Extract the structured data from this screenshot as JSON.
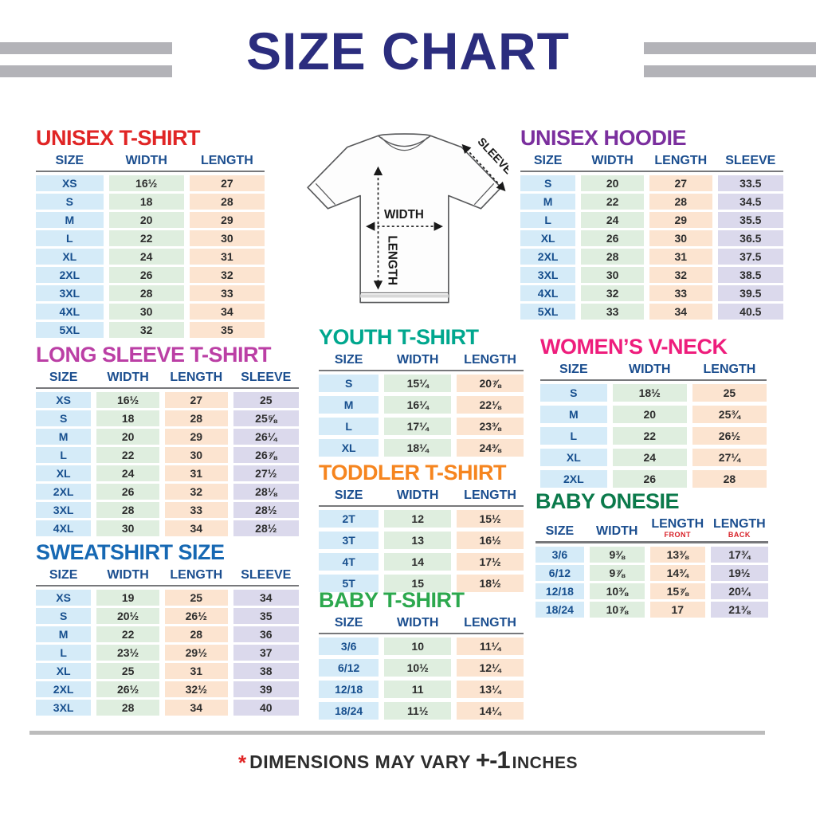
{
  "header": {
    "title": "SIZE CHART"
  },
  "colors": {
    "title": "#2b2d7e",
    "footnote_star": "#e02525",
    "bars": "#b3b3b8"
  },
  "diagram": {
    "width_label": "WIDTH",
    "length_label": "LENGTH",
    "sleeve_label": "SLEEVE"
  },
  "footnote": {
    "star": "*",
    "text": "DIMENSIONS MAY VARY",
    "tolerance": "+-1",
    "units": "INCHES"
  },
  "tables": [
    {
      "id": "unisex-tshirt",
      "title": "UNISEX T-SHIRT",
      "color": "#e02525",
      "columns": [
        {
          "label": "SIZE"
        },
        {
          "label": "WIDTH"
        },
        {
          "label": "LENGTH"
        }
      ],
      "rows": [
        [
          "XS",
          "16½",
          "27"
        ],
        [
          "S",
          "18",
          "28"
        ],
        [
          "M",
          "20",
          "29"
        ],
        [
          "L",
          "22",
          "30"
        ],
        [
          "XL",
          "24",
          "31"
        ],
        [
          "2XL",
          "26",
          "32"
        ],
        [
          "3XL",
          "28",
          "33"
        ],
        [
          "4XL",
          "30",
          "34"
        ],
        [
          "5XL",
          "32",
          "35"
        ]
      ]
    },
    {
      "id": "unisex-hoodie",
      "title": "UNISEX HOODIE",
      "color": "#7b2f9e",
      "columns": [
        {
          "label": "SIZE"
        },
        {
          "label": "WIDTH"
        },
        {
          "label": "LENGTH"
        },
        {
          "label": "SLEEVE"
        }
      ],
      "rows": [
        [
          "S",
          "20",
          "27",
          "33.5"
        ],
        [
          "M",
          "22",
          "28",
          "34.5"
        ],
        [
          "L",
          "24",
          "29",
          "35.5"
        ],
        [
          "XL",
          "26",
          "30",
          "36.5"
        ],
        [
          "2XL",
          "28",
          "31",
          "37.5"
        ],
        [
          "3XL",
          "30",
          "32",
          "38.5"
        ],
        [
          "4XL",
          "32",
          "33",
          "39.5"
        ],
        [
          "5XL",
          "33",
          "34",
          "40.5"
        ]
      ]
    },
    {
      "id": "long-sleeve-tshirt",
      "title": "LONG SLEEVE T-SHIRT",
      "color": "#bb3fa5",
      "columns": [
        {
          "label": "SIZE"
        },
        {
          "label": "WIDTH"
        },
        {
          "label": "LENGTH"
        },
        {
          "label": "SLEEVE"
        }
      ],
      "rows": [
        [
          "XS",
          "16½",
          "27",
          "25"
        ],
        [
          "S",
          "18",
          "28",
          "25⅝"
        ],
        [
          "M",
          "20",
          "29",
          "26¼"
        ],
        [
          "L",
          "22",
          "30",
          "26⅞"
        ],
        [
          "XL",
          "24",
          "31",
          "27½"
        ],
        [
          "2XL",
          "26",
          "32",
          "28⅛"
        ],
        [
          "3XL",
          "28",
          "33",
          "28½"
        ],
        [
          "4XL",
          "30",
          "34",
          "28½"
        ]
      ]
    },
    {
      "id": "youth-tshirt",
      "title": "YOUTH T-SHIRT",
      "color": "#00a78e",
      "columns": [
        {
          "label": "SIZE"
        },
        {
          "label": "WIDTH"
        },
        {
          "label": "LENGTH"
        }
      ],
      "rows": [
        [
          "S",
          "15¼",
          "20⅞"
        ],
        [
          "M",
          "16¼",
          "22⅛"
        ],
        [
          "L",
          "17¼",
          "23⅜"
        ],
        [
          "XL",
          "18¼",
          "24⅜"
        ]
      ]
    },
    {
      "id": "womens-vneck",
      "title": "WOMEN’S V-NECK",
      "color": "#ee1d7c",
      "columns": [
        {
          "label": "SIZE"
        },
        {
          "label": "WIDTH"
        },
        {
          "label": "LENGTH"
        }
      ],
      "rows": [
        [
          "S",
          "18½",
          "25"
        ],
        [
          "M",
          "20",
          "25¾"
        ],
        [
          "L",
          "22",
          "26½"
        ],
        [
          "XL",
          "24",
          "27¼"
        ],
        [
          "2XL",
          "26",
          "28"
        ]
      ]
    },
    {
      "id": "toddler-tshirt",
      "title": "TODDLER T-SHIRT",
      "color": "#f6851f",
      "columns": [
        {
          "label": "SIZE"
        },
        {
          "label": "WIDTH"
        },
        {
          "label": "LENGTH"
        }
      ],
      "rows": [
        [
          "2T",
          "12",
          "15½"
        ],
        [
          "3T",
          "13",
          "16½"
        ],
        [
          "4T",
          "14",
          "17½"
        ],
        [
          "5T",
          "15",
          "18½"
        ]
      ]
    },
    {
      "id": "sweatshirt",
      "title": "SWEATSHIRT SIZE",
      "color": "#1668b3",
      "columns": [
        {
          "label": "SIZE"
        },
        {
          "label": "WIDTH"
        },
        {
          "label": "LENGTH"
        },
        {
          "label": "SLEEVE"
        }
      ],
      "rows": [
        [
          "XS",
          "19",
          "25",
          "34"
        ],
        [
          "S",
          "20½",
          "26½",
          "35"
        ],
        [
          "M",
          "22",
          "28",
          "36"
        ],
        [
          "L",
          "23½",
          "29½",
          "37"
        ],
        [
          "XL",
          "25",
          "31",
          "38"
        ],
        [
          "2XL",
          "26½",
          "32½",
          "39"
        ],
        [
          "3XL",
          "28",
          "34",
          "40"
        ]
      ]
    },
    {
      "id": "baby-tshirt",
      "title": "BABY T-SHIRT",
      "color": "#2ca84e",
      "columns": [
        {
          "label": "SIZE"
        },
        {
          "label": "WIDTH"
        },
        {
          "label": "LENGTH"
        }
      ],
      "rows": [
        [
          "3/6",
          "10",
          "11¼"
        ],
        [
          "6/12",
          "10½",
          "12¼"
        ],
        [
          "12/18",
          "11",
          "13¼"
        ],
        [
          "18/24",
          "11½",
          "14¼"
        ]
      ]
    },
    {
      "id": "baby-onesie",
      "title": "BABY ONESIE",
      "color": "#0b7a4b",
      "columns": [
        {
          "label": "SIZE"
        },
        {
          "label": "WIDTH"
        },
        {
          "label": "LENGTH",
          "sub": "FRONT"
        },
        {
          "label": "LENGTH",
          "sub": "BACK"
        }
      ],
      "rows": [
        [
          "3/6",
          "9⅜",
          "13⅜",
          "17¾"
        ],
        [
          "6/12",
          "9⅞",
          "14¾",
          "19½"
        ],
        [
          "12/18",
          "10⅜",
          "15⅞",
          "20¼"
        ],
        [
          "18/24",
          "10⅞",
          "17",
          "21⅜"
        ]
      ]
    }
  ]
}
